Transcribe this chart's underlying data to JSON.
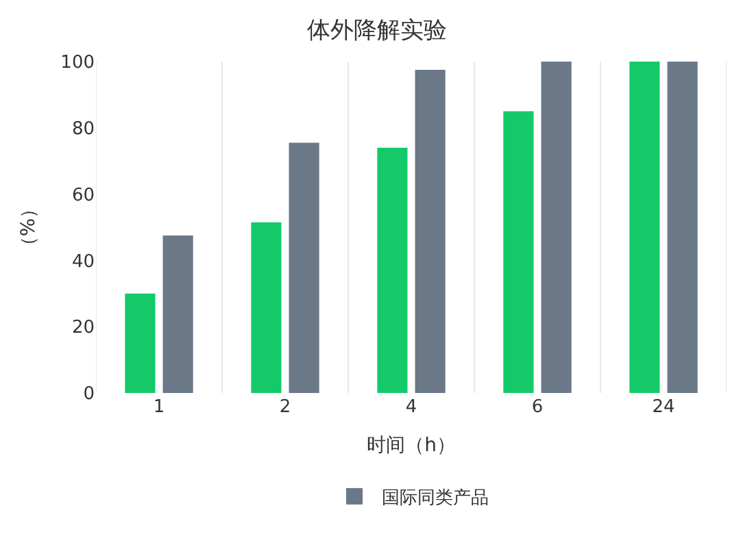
{
  "chart_data": {
    "type": "bar",
    "title": "体外降解实验",
    "xlabel": "时间（h）",
    "ylabel": "（%）",
    "categories": [
      "1",
      "2",
      "4",
      "6",
      "24"
    ],
    "series": [
      {
        "color": "#14c96a",
        "values": [
          30,
          51.5,
          74,
          85,
          100
        ]
      },
      {
        "name": "国际同类产品",
        "color": "#6a7888",
        "values": [
          47.5,
          75.5,
          97.5,
          100,
          100
        ]
      }
    ],
    "ylim": [
      0,
      100
    ],
    "yticks": [
      0,
      20,
      40,
      60,
      80,
      100
    ],
    "grid": "x",
    "legend": "bottom"
  }
}
